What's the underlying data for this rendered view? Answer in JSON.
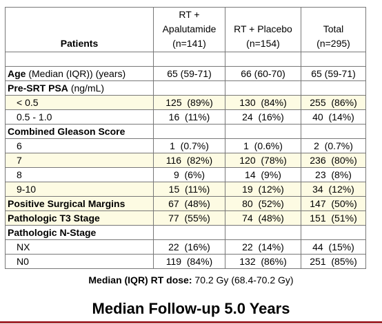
{
  "table": {
    "corner": "Patients",
    "columns": [
      {
        "name": "RT + Apalutamide",
        "n": "(n=141)"
      },
      {
        "name": "RT + Placebo",
        "n": "(n=154)"
      },
      {
        "name": "Total",
        "n": "(n=295)"
      }
    ],
    "rows": [
      {
        "label": "Age",
        "note": "(Median (IQR)) (years)",
        "style": "heading",
        "values": [
          "65 (59-71)",
          "66 (60-70)",
          "65 (59-71)"
        ]
      },
      {
        "label": "Pre-SRT PSA",
        "note": "(ng/mL)",
        "style": "heading"
      },
      {
        "label": "< 0.5",
        "style": "indent",
        "highlight": true,
        "values": [
          "125  (89%)",
          "130  (84%)",
          "255  (86%)"
        ]
      },
      {
        "label": "0.5 - 1.0",
        "style": "indent",
        "values": [
          "16  (11%)",
          "24  (16%)",
          "40  (14%)"
        ]
      },
      {
        "label": "Combined Gleason Score",
        "style": "heading"
      },
      {
        "label": "6",
        "style": "indent",
        "values": [
          "1  (0.7%)",
          "1  (0.6%)",
          "2  (0.7%)"
        ]
      },
      {
        "label": "7",
        "style": "indent",
        "highlight": true,
        "values": [
          "116  (82%)",
          "120  (78%)",
          "236  (80%)"
        ]
      },
      {
        "label": "8",
        "style": "indent",
        "values": [
          "9  (6%)",
          "14  (9%)",
          "23  (8%)"
        ]
      },
      {
        "label": "9-10",
        "style": "indent",
        "highlight": true,
        "values": [
          "15  (11%)",
          "19  (12%)",
          "34  (12%)"
        ]
      },
      {
        "label": "Positive Surgical Margins",
        "style": "heading",
        "highlight": true,
        "values": [
          "67  (48%)",
          "80  (52%)",
          "147  (50%)"
        ]
      },
      {
        "label": "Pathologic T3 Stage",
        "style": "heading",
        "highlight": true,
        "values": [
          "77  (55%)",
          "74  (48%)",
          "151  (51%)"
        ]
      },
      {
        "label": "Pathologic N-Stage",
        "style": "heading"
      },
      {
        "label": "NX",
        "style": "indent",
        "values": [
          "22  (16%)",
          "22  (14%)",
          "44  (15%)"
        ]
      },
      {
        "label": "N0",
        "style": "indent",
        "values": [
          "119  (84%)",
          "132  (86%)",
          "251  (85%)"
        ]
      }
    ]
  },
  "footnote": {
    "label": "Median (IQR) RT dose:",
    "text": "70.2 Gy (68.4-70.2 Gy)"
  },
  "title": "Median Follow-up 5.0 Years"
}
